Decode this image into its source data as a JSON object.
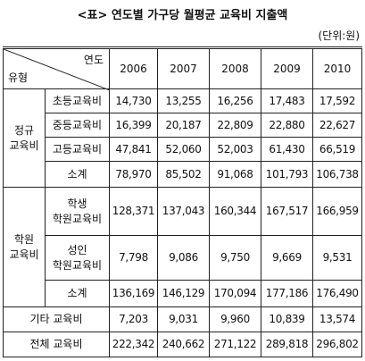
{
  "title": "<표> 연도별 가구당 월평균 교육비 지출액",
  "unit": "(단위:원)",
  "table": {
    "corner_top": "연도",
    "corner_bottom": "유형",
    "years": [
      "2006",
      "2007",
      "2008",
      "2009",
      "2010"
    ],
    "groups": [
      {
        "label": "정규\n교육비",
        "rows": [
          {
            "label": "초등교육비",
            "values": [
              "14,730",
              "13,255",
              "16,256",
              "17,483",
              "17,592"
            ]
          },
          {
            "label": "중등교육비",
            "values": [
              "16,399",
              "20,187",
              "22,809",
              "22,880",
              "22,627"
            ]
          },
          {
            "label": "고등교육비",
            "values": [
              "47,841",
              "52,060",
              "52,003",
              "61,430",
              "66,519"
            ]
          },
          {
            "label": "소계",
            "values": [
              "78,970",
              "85,502",
              "91,068",
              "101,793",
              "106,738"
            ]
          }
        ]
      },
      {
        "label": "학원\n교육비",
        "rows": [
          {
            "label": "학생\n학원교육비",
            "values": [
              "128,371",
              "137,043",
              "160,344",
              "167,517",
              "166,959"
            ]
          },
          {
            "label": "성인\n학원교육비",
            "values": [
              "7,798",
              "9,086",
              "9,750",
              "9,669",
              "9,531"
            ]
          },
          {
            "label": "소계",
            "values": [
              "136,169",
              "146,129",
              "170,094",
              "177,186",
              "176,490"
            ]
          }
        ]
      }
    ],
    "totals": [
      {
        "label": "기타 교육비",
        "values": [
          "7,203",
          "9,031",
          "9,960",
          "10,839",
          "13,574"
        ]
      },
      {
        "label": "전체 교육비",
        "values": [
          "222,342",
          "240,662",
          "271,122",
          "289,818",
          "296,802"
        ]
      }
    ]
  }
}
